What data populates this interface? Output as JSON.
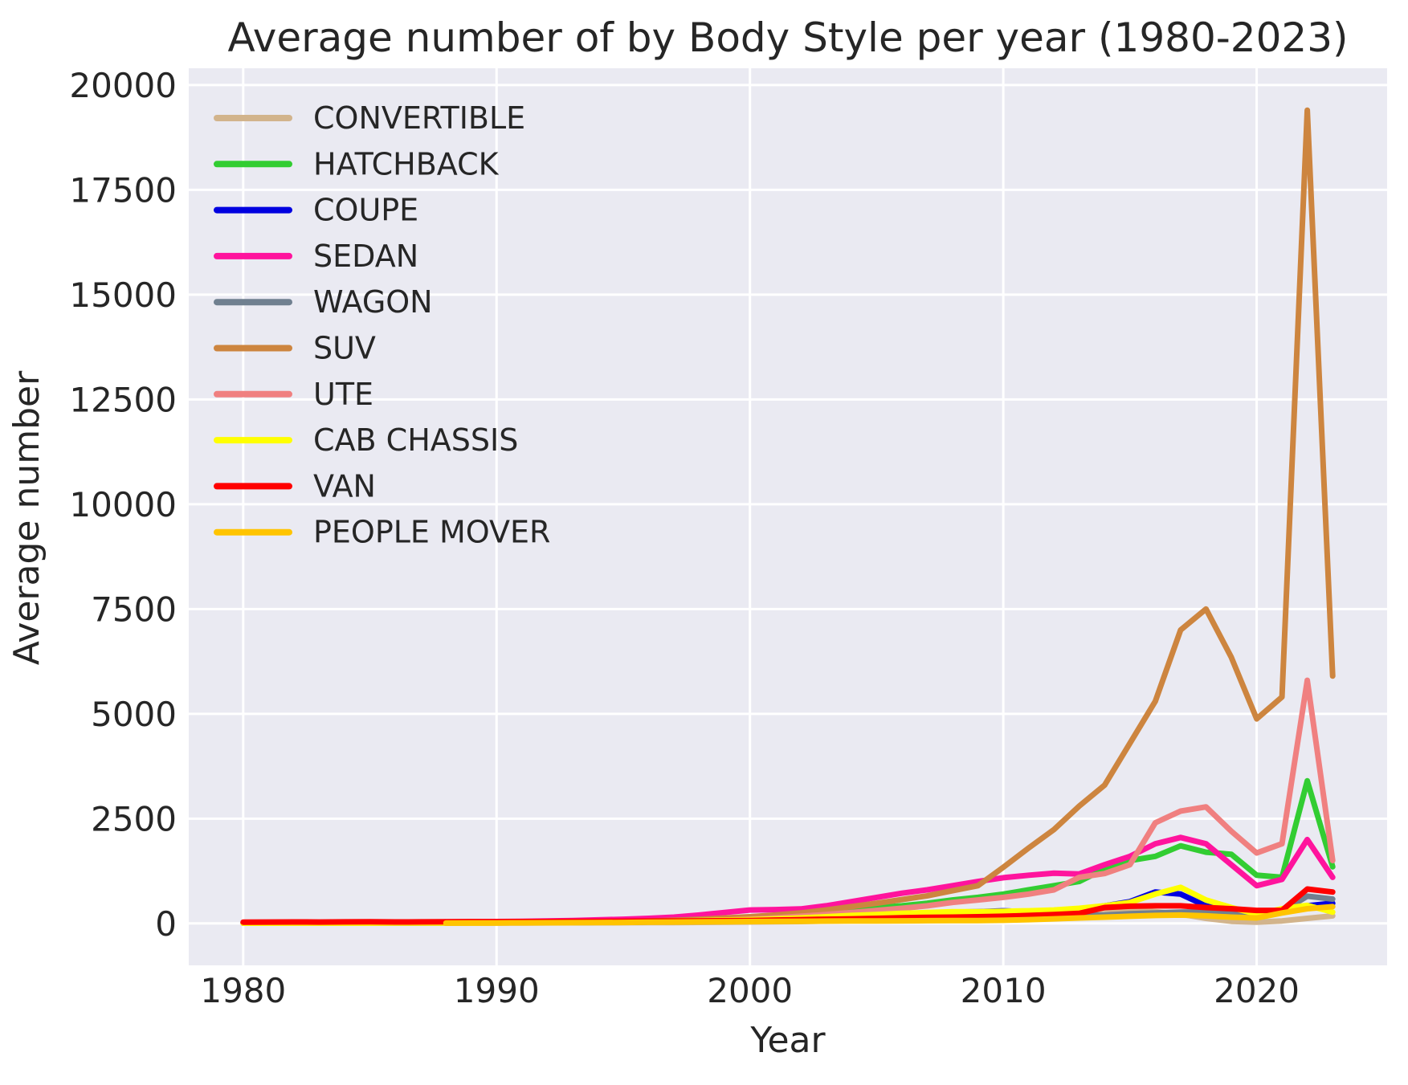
{
  "figure": {
    "title": "Average number of by Body Style per year (1980-2023)",
    "xlabel": "Year",
    "ylabel": "Average number"
  },
  "chart_data": {
    "type": "line",
    "title": "Average number of by Body Style per year (1980-2023)",
    "xlabel": "Year",
    "ylabel": "Average number",
    "x_ticks": [
      1980,
      1990,
      2000,
      2010,
      2020
    ],
    "y_ticks": [
      0,
      2500,
      5000,
      7500,
      10000,
      12500,
      15000,
      17500,
      20000
    ],
    "xlim": [
      1977.85,
      2025.15
    ],
    "ylim": [
      -1000,
      20400
    ],
    "grid": true,
    "legend_position": "upper left",
    "plot_background": "#eaeaf2",
    "grid_color": "#ffffff",
    "text_color": "#262626",
    "x": [
      1980,
      1981,
      1982,
      1983,
      1984,
      1985,
      1986,
      1987,
      1988,
      1989,
      1990,
      1991,
      1992,
      1993,
      1994,
      1995,
      1996,
      1997,
      1998,
      1999,
      2000,
      2001,
      2002,
      2003,
      2004,
      2005,
      2006,
      2007,
      2008,
      2009,
      2010,
      2011,
      2012,
      2013,
      2014,
      2015,
      2016,
      2017,
      2018,
      2019,
      2020,
      2021,
      2022,
      2023
    ],
    "series": [
      {
        "name": "CONVERTIBLE",
        "color": "#d2b48c",
        "values": [
          5,
          5,
          6,
          6,
          7,
          8,
          8,
          9,
          10,
          10,
          12,
          12,
          14,
          15,
          16,
          18,
          20,
          22,
          25,
          28,
          35,
          40,
          45,
          55,
          65,
          80,
          90,
          100,
          110,
          115,
          120,
          150,
          250,
          300,
          340,
          320,
          280,
          220,
          120,
          50,
          30,
          60,
          120,
          180
        ]
      },
      {
        "name": "HATCHBACK",
        "color": "#32cd32",
        "values": [
          10,
          10,
          12,
          12,
          14,
          15,
          16,
          18,
          20,
          22,
          25,
          28,
          30,
          35,
          40,
          50,
          60,
          80,
          100,
          120,
          150,
          180,
          220,
          280,
          340,
          380,
          420,
          480,
          560,
          620,
          700,
          800,
          900,
          1000,
          1300,
          1500,
          1600,
          1850,
          1700,
          1650,
          1150,
          1100,
          3400,
          1350
        ]
      },
      {
        "name": "COUPE",
        "color": "#0000e0",
        "values": [
          8,
          8,
          9,
          9,
          10,
          10,
          12,
          12,
          14,
          15,
          16,
          18,
          20,
          22,
          25,
          30,
          35,
          40,
          50,
          55,
          60,
          80,
          100,
          130,
          160,
          200,
          230,
          250,
          270,
          280,
          300,
          280,
          300,
          330,
          420,
          520,
          750,
          700,
          420,
          300,
          230,
          280,
          420,
          480
        ]
      },
      {
        "name": "SEDAN",
        "color": "#ff149d",
        "values": [
          15,
          16,
          18,
          20,
          22,
          25,
          28,
          30,
          35,
          40,
          45,
          50,
          60,
          70,
          85,
          100,
          120,
          150,
          200,
          260,
          320,
          330,
          345,
          420,
          520,
          620,
          720,
          800,
          900,
          1000,
          1090,
          1150,
          1200,
          1180,
          1400,
          1600,
          1900,
          2050,
          1900,
          1400,
          900,
          1050,
          2000,
          1100
        ]
      },
      {
        "name": "WAGON",
        "color": "#708090",
        "values": [
          10,
          10,
          11,
          11,
          12,
          12,
          13,
          14,
          15,
          16,
          18,
          20,
          22,
          24,
          26,
          30,
          34,
          38,
          45,
          50,
          60,
          70,
          80,
          90,
          100,
          120,
          130,
          140,
          150,
          150,
          160,
          170,
          180,
          190,
          200,
          230,
          250,
          270,
          280,
          250,
          200,
          280,
          650,
          580
        ]
      },
      {
        "name": "SUV",
        "color": "#cd853f",
        "values": [
          5,
          5,
          6,
          6,
          7,
          8,
          9,
          10,
          11,
          12,
          14,
          16,
          20,
          25,
          30,
          40,
          55,
          75,
          100,
          130,
          160,
          200,
          250,
          320,
          400,
          480,
          570,
          660,
          780,
          900,
          1340,
          1800,
          2240,
          2800,
          3300,
          4300,
          5300,
          7000,
          7500,
          6350,
          4880,
          5400,
          19400,
          5900
        ]
      },
      {
        "name": "UTE",
        "color": "#f08080",
        "values": [
          8,
          8,
          9,
          10,
          10,
          11,
          12,
          13,
          14,
          15,
          16,
          18,
          20,
          24,
          28,
          34,
          40,
          50,
          65,
          80,
          100,
          130,
          170,
          210,
          260,
          310,
          360,
          420,
          500,
          560,
          620,
          700,
          800,
          1100,
          1190,
          1400,
          2400,
          2680,
          2780,
          2200,
          1680,
          1900,
          5800,
          1500
        ]
      },
      {
        "name": "CAB CHASSIS",
        "color": "#ffff00",
        "values": [
          6,
          6,
          7,
          7,
          8,
          8,
          9,
          10,
          11,
          12,
          14,
          16,
          18,
          20,
          25,
          40,
          50,
          60,
          70,
          80,
          90,
          110,
          130,
          160,
          190,
          210,
          240,
          260,
          280,
          280,
          290,
          300,
          320,
          360,
          420,
          500,
          700,
          860,
          560,
          380,
          220,
          350,
          430,
          270
        ]
      },
      {
        "name": "VAN",
        "color": "#ff0000",
        "values": [
          30,
          32,
          35,
          33,
          36,
          38,
          35,
          37,
          40,
          42,
          40,
          42,
          45,
          48,
          50,
          52,
          55,
          58,
          62,
          66,
          70,
          80,
          90,
          100,
          110,
          120,
          135,
          145,
          150,
          160,
          170,
          190,
          210,
          240,
          380,
          410,
          420,
          420,
          380,
          350,
          310,
          310,
          820,
          750
        ]
      },
      {
        "name": "PEOPLE MOVER",
        "color": "#ffc400",
        "values": [
          null,
          null,
          null,
          null,
          null,
          null,
          null,
          null,
          8,
          10,
          12,
          14,
          16,
          18,
          20,
          24,
          28,
          32,
          36,
          40,
          45,
          48,
          52,
          55,
          58,
          60,
          62,
          65,
          68,
          70,
          75,
          90,
          110,
          130,
          150,
          170,
          190,
          200,
          180,
          150,
          130,
          250,
          350,
          400
        ]
      }
    ]
  }
}
